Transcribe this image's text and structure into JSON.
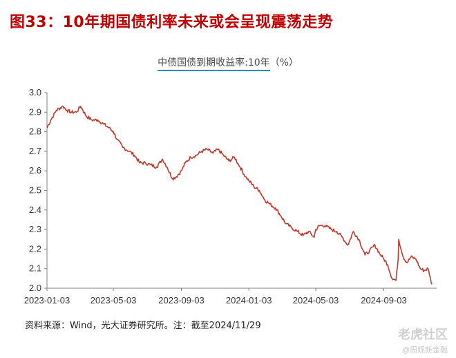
{
  "figure": {
    "title": "图33：10年期国债利率未来或会呈现震荡走势",
    "source": "资料来源：Wind，光大证券研究所。注：截至2024/11/29"
  },
  "watermark": {
    "main": "老虎社区",
    "sub": "@周观新金融"
  },
  "colors": {
    "title_red": "#c00000",
    "series_line": "#c0392b",
    "title_underline": "#1a8fb8",
    "axis": "#7f7f7f"
  },
  "chart_data": {
    "type": "line",
    "title": "中债国债到期收益率:10年",
    "title_unit": "（%）",
    "xlabel": "",
    "ylabel": "",
    "ylim": [
      2.0,
      3.0
    ],
    "y_ticks": [
      "3.0",
      "2.9",
      "2.8",
      "2.7",
      "2.6",
      "2.5",
      "2.4",
      "2.3",
      "2.2",
      "2.1",
      "2.0"
    ],
    "x_ticks": [
      "2023-01-03",
      "2023-05-03",
      "2023-09-03",
      "2024-01-03",
      "2024-05-03",
      "2024-09-03"
    ],
    "x_range": [
      "2023-01-03",
      "2024-11-29"
    ],
    "grid": false,
    "legend": "none",
    "series": [
      {
        "values": [
          [
            "2023-01-03",
            2.82
          ],
          [
            "2023-01-10",
            2.86
          ],
          [
            "2023-01-20",
            2.91
          ],
          [
            "2023-02-01",
            2.93
          ],
          [
            "2023-02-08",
            2.91
          ],
          [
            "2023-02-15",
            2.9
          ],
          [
            "2023-02-25",
            2.9
          ],
          [
            "2023-03-05",
            2.93
          ],
          [
            "2023-03-15",
            2.88
          ],
          [
            "2023-03-25",
            2.86
          ],
          [
            "2023-04-05",
            2.86
          ],
          [
            "2023-04-15",
            2.84
          ],
          [
            "2023-04-25",
            2.82
          ],
          [
            "2023-05-03",
            2.8
          ],
          [
            "2023-05-10",
            2.76
          ],
          [
            "2023-05-20",
            2.72
          ],
          [
            "2023-06-01",
            2.7
          ],
          [
            "2023-06-10",
            2.68
          ],
          [
            "2023-06-20",
            2.64
          ],
          [
            "2023-06-30",
            2.64
          ],
          [
            "2023-07-10",
            2.63
          ],
          [
            "2023-07-20",
            2.62
          ],
          [
            "2023-07-31",
            2.66
          ],
          [
            "2023-08-08",
            2.62
          ],
          [
            "2023-08-18",
            2.56
          ],
          [
            "2023-08-25",
            2.57
          ],
          [
            "2023-09-03",
            2.6
          ],
          [
            "2023-09-10",
            2.64
          ],
          [
            "2023-09-20",
            2.67
          ],
          [
            "2023-09-30",
            2.68
          ],
          [
            "2023-10-10",
            2.7
          ],
          [
            "2023-10-20",
            2.71
          ],
          [
            "2023-10-30",
            2.69
          ],
          [
            "2023-11-08",
            2.71
          ],
          [
            "2023-11-18",
            2.68
          ],
          [
            "2023-11-28",
            2.65
          ],
          [
            "2023-12-08",
            2.67
          ],
          [
            "2023-12-18",
            2.62
          ],
          [
            "2023-12-28",
            2.57
          ],
          [
            "2024-01-03",
            2.55
          ],
          [
            "2024-01-12",
            2.52
          ],
          [
            "2024-01-22",
            2.5
          ],
          [
            "2024-02-01",
            2.45
          ],
          [
            "2024-02-10",
            2.43
          ],
          [
            "2024-02-20",
            2.41
          ],
          [
            "2024-03-01",
            2.37
          ],
          [
            "2024-03-10",
            2.33
          ],
          [
            "2024-03-20",
            2.31
          ],
          [
            "2024-03-31",
            2.29
          ],
          [
            "2024-04-10",
            2.27
          ],
          [
            "2024-04-20",
            2.29
          ],
          [
            "2024-04-30",
            2.26
          ],
          [
            "2024-05-03",
            2.3
          ],
          [
            "2024-05-10",
            2.32
          ],
          [
            "2024-05-20",
            2.32
          ],
          [
            "2024-05-31",
            2.3
          ],
          [
            "2024-06-10",
            2.29
          ],
          [
            "2024-06-20",
            2.26
          ],
          [
            "2024-06-30",
            2.22
          ],
          [
            "2024-07-10",
            2.29
          ],
          [
            "2024-07-20",
            2.25
          ],
          [
            "2024-07-31",
            2.17
          ],
          [
            "2024-08-08",
            2.19
          ],
          [
            "2024-08-18",
            2.22
          ],
          [
            "2024-08-28",
            2.17
          ],
          [
            "2024-09-03",
            2.15
          ],
          [
            "2024-09-10",
            2.12
          ],
          [
            "2024-09-18",
            2.05
          ],
          [
            "2024-09-25",
            2.04
          ],
          [
            "2024-09-29",
            2.15
          ],
          [
            "2024-09-30",
            2.25
          ],
          [
            "2024-10-08",
            2.16
          ],
          [
            "2024-10-15",
            2.13
          ],
          [
            "2024-10-22",
            2.16
          ],
          [
            "2024-10-31",
            2.15
          ],
          [
            "2024-11-08",
            2.1
          ],
          [
            "2024-11-15",
            2.09
          ],
          [
            "2024-11-22",
            2.1
          ],
          [
            "2024-11-29",
            2.02
          ]
        ]
      }
    ]
  }
}
